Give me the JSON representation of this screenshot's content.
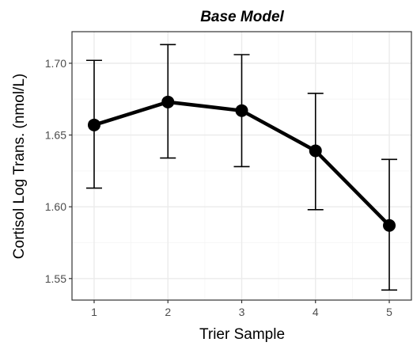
{
  "chart_data": {
    "type": "line",
    "title": "Base Model",
    "xlabel": "Trier Sample",
    "ylabel": "Cortisol Log Trans. (nmol/L)",
    "x": [
      1,
      2,
      3,
      4,
      5
    ],
    "x_ticks": [
      "1",
      "2",
      "3",
      "4",
      "5"
    ],
    "y_ticks": [
      "1.55",
      "1.60",
      "1.65",
      "1.70"
    ],
    "y_tick_values": [
      1.55,
      1.6,
      1.65,
      1.7
    ],
    "xlim": [
      0.7,
      5.3
    ],
    "ylim": [
      1.535,
      1.722
    ],
    "grid": true,
    "series": [
      {
        "values": [
          1.657,
          1.673,
          1.667,
          1.639,
          1.587
        ],
        "error_lower": [
          1.613,
          1.634,
          1.628,
          1.598,
          1.542
        ],
        "error_upper": [
          1.702,
          1.713,
          1.706,
          1.679,
          1.633
        ]
      }
    ]
  }
}
